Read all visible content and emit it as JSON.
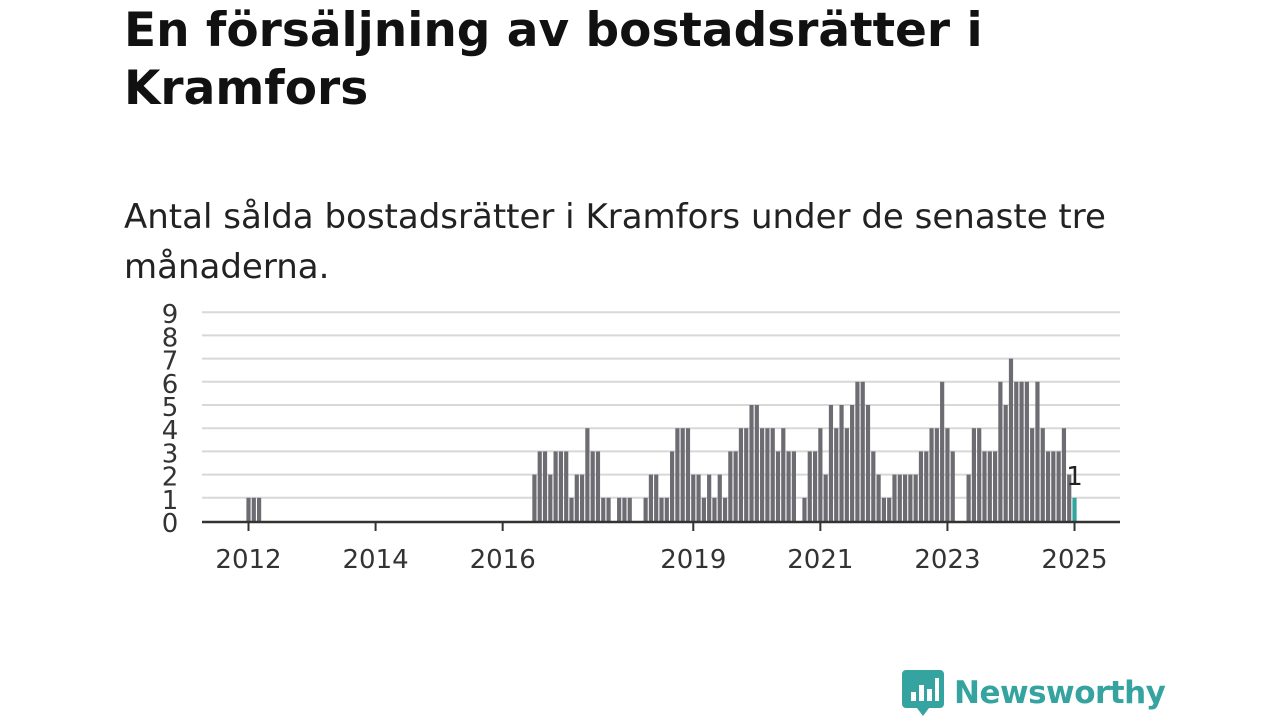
{
  "title": "En försäljning av bostadsrätter i Kramfors",
  "subtitle": "Antal sålda bostadsrätter i Kramfors under de senaste tre månaderna.",
  "brand": {
    "name": "Newsworthy"
  },
  "colors": {
    "bar": "#6e6c73",
    "highlight": "#35a3a0",
    "grid": "#d8d8d8",
    "axis": "#333333",
    "brand": "#35a3a0"
  },
  "chart_data": {
    "type": "bar",
    "x_unit": "month",
    "x_start": "2012-01",
    "x_end": "2025-01",
    "x_tick_labels": [
      "2012",
      "2014",
      "2016",
      "2019",
      "2021",
      "2023",
      "2025"
    ],
    "ylim": [
      0,
      9
    ],
    "y_ticks": [
      "0",
      "1",
      "2",
      "3",
      "4",
      "5",
      "6",
      "7",
      "8",
      "9"
    ],
    "grid": true,
    "data_label": {
      "x": "2025-01",
      "text": "1"
    },
    "highlight": "2025-01",
    "series": [
      {
        "values": [
          {
            "x": "2012-01",
            "y": 1
          },
          {
            "x": "2012-02",
            "y": 1
          },
          {
            "x": "2012-03",
            "y": 1
          },
          {
            "x": "2016-07",
            "y": 2
          },
          {
            "x": "2016-08",
            "y": 3
          },
          {
            "x": "2016-09",
            "y": 3
          },
          {
            "x": "2016-10",
            "y": 2
          },
          {
            "x": "2016-11",
            "y": 3
          },
          {
            "x": "2016-12",
            "y": 3
          },
          {
            "x": "2017-01",
            "y": 3
          },
          {
            "x": "2017-02",
            "y": 1
          },
          {
            "x": "2017-03",
            "y": 2
          },
          {
            "x": "2017-04",
            "y": 2
          },
          {
            "x": "2017-05",
            "y": 4
          },
          {
            "x": "2017-06",
            "y": 3
          },
          {
            "x": "2017-07",
            "y": 3
          },
          {
            "x": "2017-08",
            "y": 1
          },
          {
            "x": "2017-09",
            "y": 1
          },
          {
            "x": "2017-11",
            "y": 1
          },
          {
            "x": "2017-12",
            "y": 1
          },
          {
            "x": "2018-01",
            "y": 1
          },
          {
            "x": "2018-04",
            "y": 1
          },
          {
            "x": "2018-05",
            "y": 2
          },
          {
            "x": "2018-06",
            "y": 2
          },
          {
            "x": "2018-07",
            "y": 1
          },
          {
            "x": "2018-08",
            "y": 1
          },
          {
            "x": "2018-09",
            "y": 3
          },
          {
            "x": "2018-10",
            "y": 4
          },
          {
            "x": "2018-11",
            "y": 4
          },
          {
            "x": "2018-12",
            "y": 4
          },
          {
            "x": "2019-01",
            "y": 2
          },
          {
            "x": "2019-02",
            "y": 2
          },
          {
            "x": "2019-03",
            "y": 1
          },
          {
            "x": "2019-04",
            "y": 2
          },
          {
            "x": "2019-05",
            "y": 1
          },
          {
            "x": "2019-06",
            "y": 2
          },
          {
            "x": "2019-07",
            "y": 1
          },
          {
            "x": "2019-08",
            "y": 3
          },
          {
            "x": "2019-09",
            "y": 3
          },
          {
            "x": "2019-10",
            "y": 4
          },
          {
            "x": "2019-11",
            "y": 4
          },
          {
            "x": "2019-12",
            "y": 5
          },
          {
            "x": "2020-01",
            "y": 5
          },
          {
            "x": "2020-02",
            "y": 4
          },
          {
            "x": "2020-03",
            "y": 4
          },
          {
            "x": "2020-04",
            "y": 4
          },
          {
            "x": "2020-05",
            "y": 3
          },
          {
            "x": "2020-06",
            "y": 4
          },
          {
            "x": "2020-07",
            "y": 3
          },
          {
            "x": "2020-08",
            "y": 3
          },
          {
            "x": "2020-10",
            "y": 1
          },
          {
            "x": "2020-11",
            "y": 3
          },
          {
            "x": "2020-12",
            "y": 3
          },
          {
            "x": "2021-01",
            "y": 4
          },
          {
            "x": "2021-02",
            "y": 2
          },
          {
            "x": "2021-03",
            "y": 5
          },
          {
            "x": "2021-04",
            "y": 4
          },
          {
            "x": "2021-05",
            "y": 5
          },
          {
            "x": "2021-06",
            "y": 4
          },
          {
            "x": "2021-07",
            "y": 5
          },
          {
            "x": "2021-08",
            "y": 6
          },
          {
            "x": "2021-09",
            "y": 6
          },
          {
            "x": "2021-10",
            "y": 5
          },
          {
            "x": "2021-11",
            "y": 3
          },
          {
            "x": "2021-12",
            "y": 2
          },
          {
            "x": "2022-01",
            "y": 1
          },
          {
            "x": "2022-02",
            "y": 1
          },
          {
            "x": "2022-03",
            "y": 2
          },
          {
            "x": "2022-04",
            "y": 2
          },
          {
            "x": "2022-05",
            "y": 2
          },
          {
            "x": "2022-06",
            "y": 2
          },
          {
            "x": "2022-07",
            "y": 2
          },
          {
            "x": "2022-08",
            "y": 3
          },
          {
            "x": "2022-09",
            "y": 3
          },
          {
            "x": "2022-10",
            "y": 4
          },
          {
            "x": "2022-11",
            "y": 4
          },
          {
            "x": "2022-12",
            "y": 6
          },
          {
            "x": "2023-01",
            "y": 4
          },
          {
            "x": "2023-02",
            "y": 3
          },
          {
            "x": "2023-05",
            "y": 2
          },
          {
            "x": "2023-06",
            "y": 4
          },
          {
            "x": "2023-07",
            "y": 4
          },
          {
            "x": "2023-08",
            "y": 3
          },
          {
            "x": "2023-09",
            "y": 3
          },
          {
            "x": "2023-10",
            "y": 3
          },
          {
            "x": "2023-11",
            "y": 6
          },
          {
            "x": "2023-12",
            "y": 5
          },
          {
            "x": "2024-01",
            "y": 7
          },
          {
            "x": "2024-02",
            "y": 6
          },
          {
            "x": "2024-03",
            "y": 6
          },
          {
            "x": "2024-04",
            "y": 6
          },
          {
            "x": "2024-05",
            "y": 4
          },
          {
            "x": "2024-06",
            "y": 6
          },
          {
            "x": "2024-07",
            "y": 4
          },
          {
            "x": "2024-08",
            "y": 3
          },
          {
            "x": "2024-09",
            "y": 3
          },
          {
            "x": "2024-10",
            "y": 3
          },
          {
            "x": "2024-11",
            "y": 4
          },
          {
            "x": "2024-12",
            "y": 2
          },
          {
            "x": "2025-01",
            "y": 1
          }
        ]
      }
    ]
  }
}
